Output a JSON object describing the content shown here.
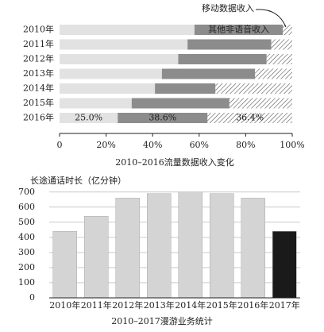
{
  "chart_data": [
    {
      "type": "stacked-barh",
      "title": "2010–2016流量数据收入变化",
      "categories": [
        "2010年",
        "2011年",
        "2012年",
        "2013年",
        "2014年",
        "2015年",
        "2016年"
      ],
      "series": [
        {
          "color": "#e2e2e2",
          "values": [
            58,
            55,
            51,
            44,
            41,
            31,
            25.0
          ],
          "value_labels": [
            null,
            null,
            null,
            null,
            null,
            null,
            "25.0%"
          ]
        },
        {
          "name": "其他非语音收入",
          "color": "#8c8c8c",
          "values": [
            38,
            36,
            38,
            40,
            26,
            42,
            38.6
          ],
          "value_labels": [
            null,
            null,
            null,
            null,
            null,
            null,
            "38.6%"
          ]
        },
        {
          "name": "移动数据收入",
          "color": "#555555",
          "pattern": "hatch",
          "values": [
            4,
            9,
            11,
            16,
            33,
            27,
            36.4
          ],
          "value_labels": [
            null,
            null,
            null,
            null,
            null,
            null,
            "36.4%"
          ]
        }
      ],
      "xlim": [
        0,
        100
      ],
      "xticks": [
        0,
        {
          "value": 20,
          "label": "20%"
        },
        {
          "value": 40,
          "label": "40%"
        },
        {
          "value": 60,
          "label": "60%"
        },
        {
          "value": 80,
          "label": "80%"
        },
        {
          "value": 100,
          "label": "100%"
        }
      ]
    },
    {
      "type": "bar",
      "title": "2010–2017漫游业务统计",
      "ylabel": "长途通话时长（亿分钟）",
      "categories": [
        "2010年",
        "2011年",
        "2012年",
        "2013年",
        "2014年",
        "2015年",
        "2016年",
        "2017年"
      ],
      "values": [
        440,
        540,
        660,
        690,
        700,
        690,
        660,
        440
      ],
      "colors": [
        "#d4d4d4",
        "#d4d4d4",
        "#d4d4d4",
        "#d4d4d4",
        "#d4d4d4",
        "#d4d4d4",
        "#d4d4d4",
        "#1a1a1a"
      ],
      "ylim": [
        0,
        720
      ],
      "yticks": [
        0,
        100,
        200,
        300,
        400,
        500,
        600,
        700
      ],
      "grid": true
    }
  ]
}
